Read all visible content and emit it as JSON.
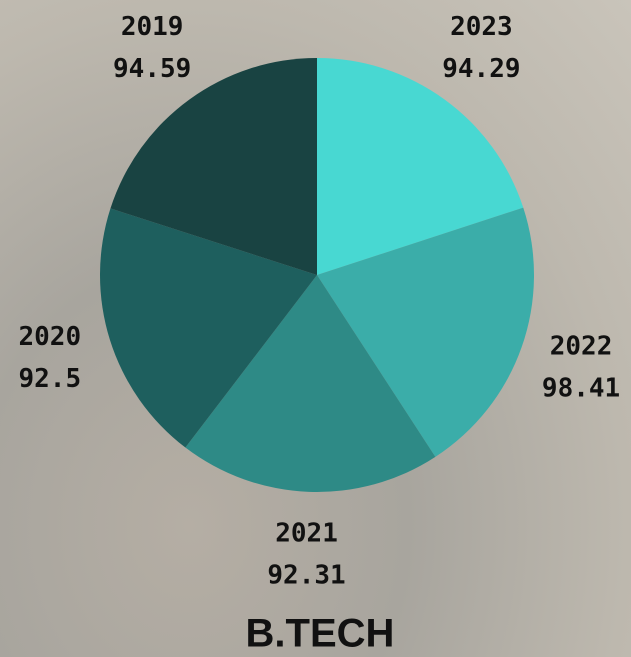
{
  "chart_data": {
    "type": "pie",
    "title": "B.TECH",
    "categories": [
      "2023",
      "2022",
      "2021",
      "2020",
      "2019"
    ],
    "values": [
      94.29,
      98.41,
      92.31,
      92.5,
      94.59
    ],
    "colors": [
      "#48d8d2",
      "#3bada9",
      "#2e8a86",
      "#1e5f5e",
      "#194342"
    ]
  }
}
